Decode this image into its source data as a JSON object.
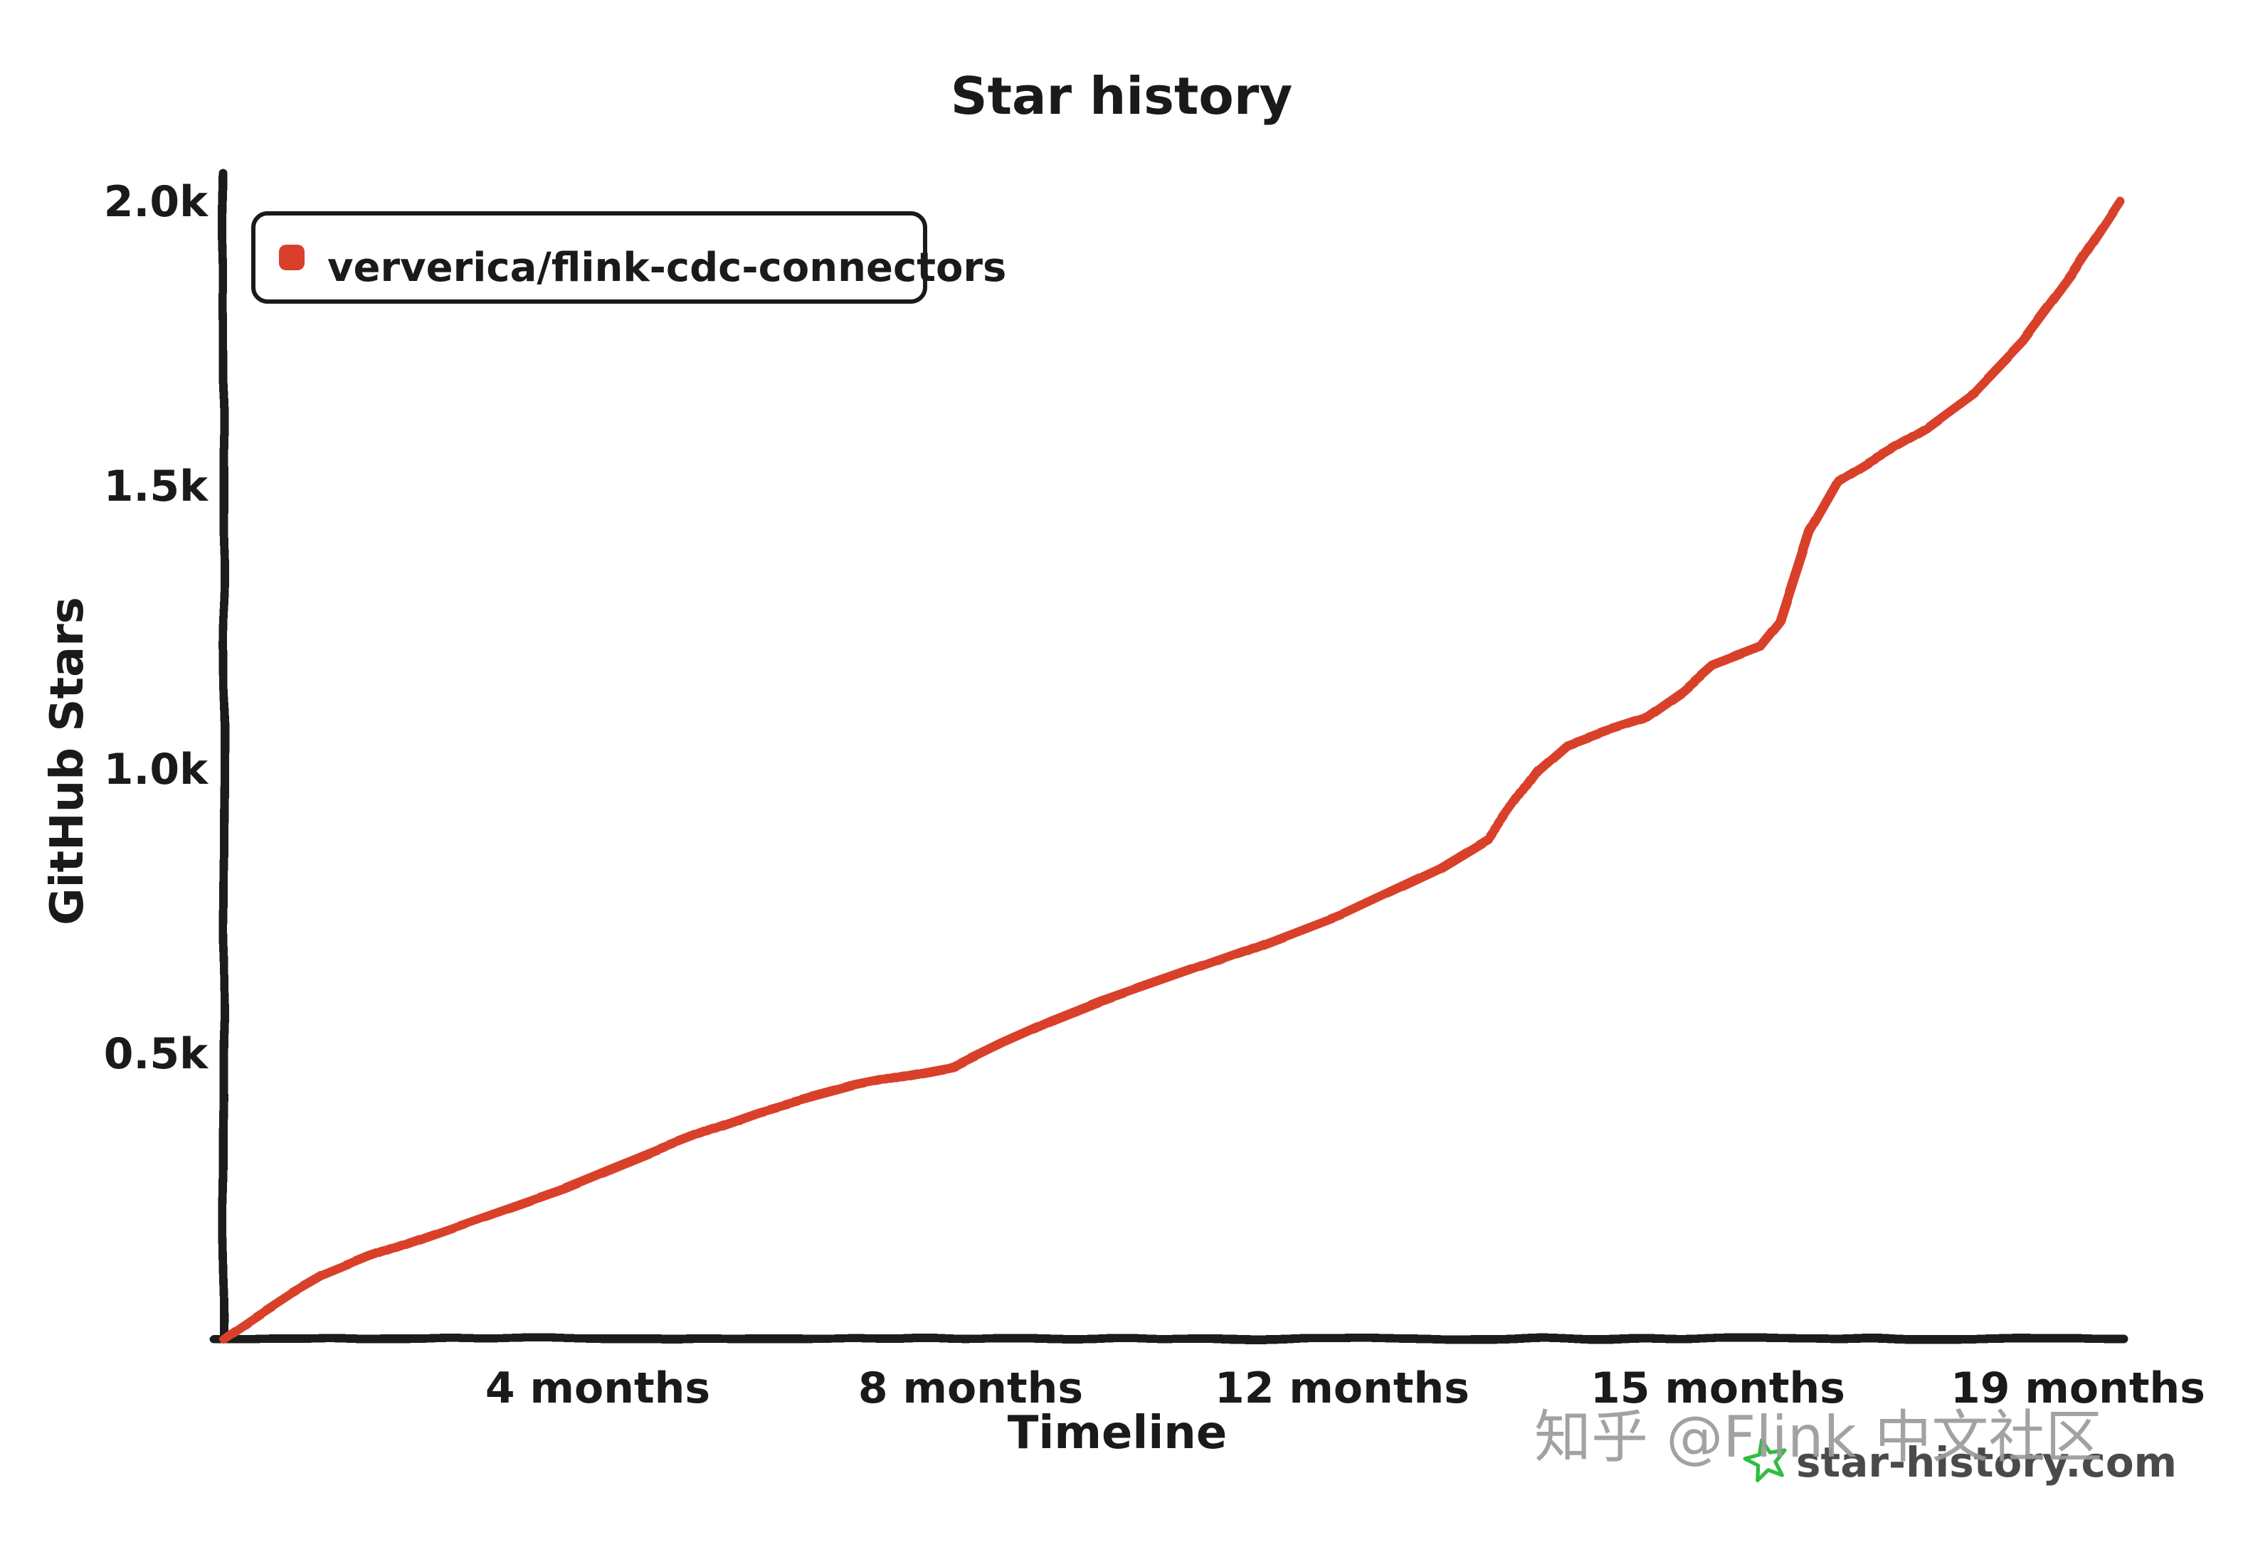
{
  "chart_data": {
    "type": "line",
    "title": "Star history",
    "xlabel": "Timeline",
    "ylabel": "GitHub Stars",
    "x_tick_labels": [
      "4 months",
      "8 months",
      "12 months",
      "15 months",
      "19 months"
    ],
    "y_tick_labels": [
      "2.0k",
      "1.5k",
      "1.0k",
      "0.5k"
    ],
    "xlim_months": [
      0,
      19.5
    ],
    "ylim": [
      0,
      2000
    ],
    "grid": false,
    "legend_position": "top-left",
    "series": [
      {
        "name": "ververica/flink-cdc-connectors",
        "color": "#d9402c",
        "points_month_stars": [
          [
            0,
            0
          ],
          [
            0.3,
            35
          ],
          [
            0.7,
            80
          ],
          [
            1,
            110
          ],
          [
            1.5,
            145
          ],
          [
            2,
            175
          ],
          [
            2.5,
            205
          ],
          [
            3,
            235
          ],
          [
            3.5,
            265
          ],
          [
            4,
            300
          ],
          [
            4.5,
            335
          ],
          [
            5,
            368
          ],
          [
            5.5,
            398
          ],
          [
            6,
            422
          ],
          [
            6.5,
            445
          ],
          [
            7,
            462
          ],
          [
            7.5,
            478
          ],
          [
            8,
            520
          ],
          [
            8.5,
            558
          ],
          [
            9,
            592
          ],
          [
            9.5,
            622
          ],
          [
            10,
            652
          ],
          [
            10.5,
            682
          ],
          [
            11,
            715
          ],
          [
            11.5,
            748
          ],
          [
            12,
            788
          ],
          [
            12.5,
            828
          ],
          [
            13,
            880
          ],
          [
            13.5,
            1000
          ],
          [
            13.8,
            1045
          ],
          [
            14.2,
            1070
          ],
          [
            14.6,
            1092
          ],
          [
            15,
            1140
          ],
          [
            15.3,
            1185
          ],
          [
            15.8,
            1218
          ],
          [
            16,
            1260
          ],
          [
            16.3,
            1420
          ],
          [
            16.6,
            1510
          ],
          [
            17,
            1552
          ],
          [
            17.5,
            1602
          ],
          [
            18,
            1665
          ],
          [
            18.5,
            1755
          ],
          [
            19,
            1870
          ],
          [
            19.5,
            2000
          ]
        ]
      }
    ]
  },
  "watermarks": {
    "zhihu": "知乎 @Flink 中文社区",
    "site": "star-history.com",
    "star_icon_color": "#2fbe3e"
  },
  "colors": {
    "axis": "#1a1a1a",
    "text": "#1a1a1a",
    "background": "#ffffff"
  }
}
